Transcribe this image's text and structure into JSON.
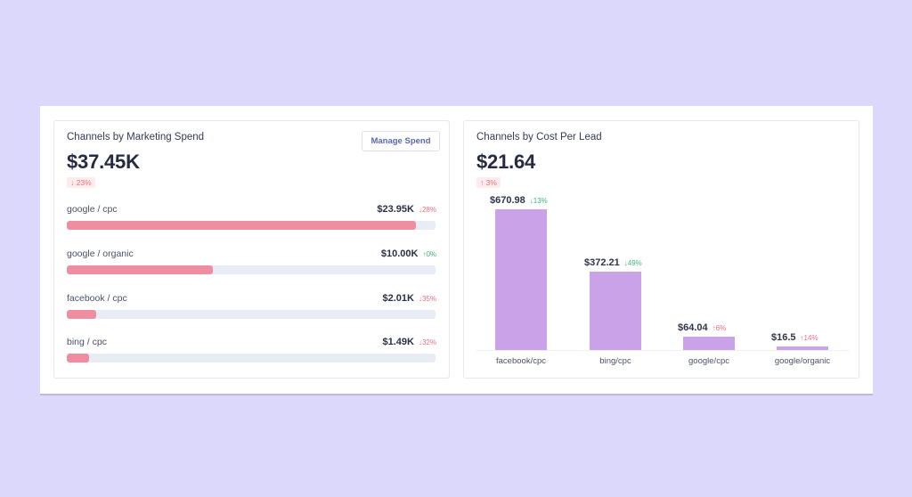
{
  "spend_panel": {
    "title": "Channels by Marketing Spend",
    "total": "$37.45K",
    "change": {
      "direction": "down",
      "arrow": "↓",
      "text": "23%"
    },
    "manage_button": "Manage Spend",
    "rows": [
      {
        "label": "google / cpc",
        "value": "$23.95K",
        "delta_arrow": "↓",
        "delta": "28%",
        "trend": "down",
        "fill": 0.947
      },
      {
        "label": "google / organic",
        "value": "$10.00K",
        "delta_arrow": "↑",
        "delta": "0%",
        "trend": "up",
        "fill": 0.396
      },
      {
        "label": "facebook / cpc",
        "value": "$2.01K",
        "delta_arrow": "↓",
        "delta": "35%",
        "trend": "down",
        "fill": 0.08
      },
      {
        "label": "bing / cpc",
        "value": "$1.49K",
        "delta_arrow": "↓",
        "delta": "32%",
        "trend": "down",
        "fill": 0.06
      }
    ]
  },
  "cpl_panel": {
    "title": "Channels by Cost Per Lead",
    "total": "$21.64",
    "change": {
      "direction": "up",
      "arrow": "↑",
      "text": "3%"
    }
  },
  "chart_data": {
    "type": "bar",
    "title": "Channels by Cost Per Lead",
    "categories": [
      "facebook/cpc",
      "bing/cpc",
      "google/cpc",
      "google/organic"
    ],
    "values": [
      670.98,
      372.21,
      64.04,
      16.5
    ],
    "value_labels": [
      "$670.98",
      "$372.21",
      "$64.04",
      "$16.5"
    ],
    "deltas": [
      {
        "arrow": "↓",
        "text": "13%",
        "color": "green"
      },
      {
        "arrow": "↓",
        "text": "49%",
        "color": "green"
      },
      {
        "arrow": "↑",
        "text": "6%",
        "color": "red"
      },
      {
        "arrow": "↑",
        "text": "14%",
        "color": "red"
      }
    ],
    "xlabel": "",
    "ylabel": "",
    "ylim": [
      0,
      670.98
    ],
    "grid": false,
    "bar_color": "#c9a2e8"
  },
  "colors": {
    "background": "#dcd8fb",
    "spend_bar": "#ef8ea0",
    "track": "#e8ecf4",
    "negative": "#ef6f80",
    "positive": "#3fb877",
    "button_text": "#5a68b8"
  }
}
